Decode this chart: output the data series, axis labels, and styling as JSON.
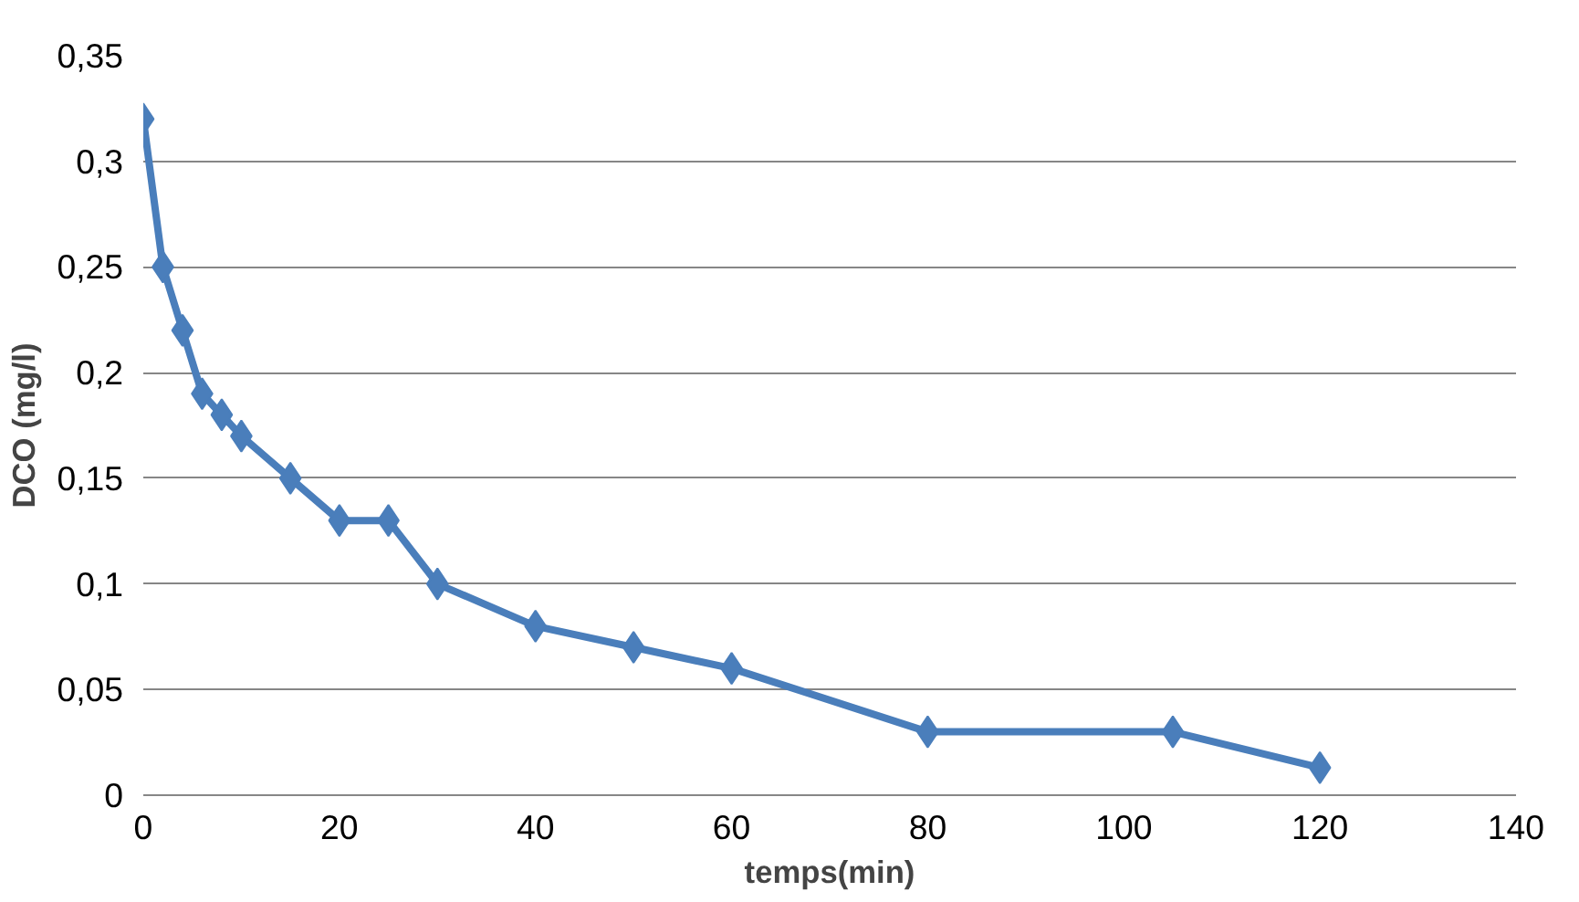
{
  "chart_data": {
    "type": "line",
    "xlabel": "temps(min)",
    "ylabel": "DCO (mg/l)",
    "x": [
      0,
      2,
      4,
      6,
      8,
      10,
      15,
      20,
      25,
      30,
      40,
      50,
      60,
      80,
      105,
      120
    ],
    "series": [
      {
        "color": "#4a7ebb",
        "values": [
          0.32,
          0.25,
          0.22,
          0.19,
          0.18,
          0.17,
          0.15,
          0.13,
          0.13,
          0.1,
          0.08,
          0.07,
          0.06,
          0.03,
          0.03,
          0.013
        ]
      }
    ],
    "xlim": [
      0,
      140
    ],
    "xticks": [
      0,
      20,
      40,
      60,
      80,
      100,
      120,
      140
    ],
    "ylim": [
      0,
      0.35
    ],
    "yticks": [
      0,
      {
        "value": 0.05,
        "label": "0,05"
      },
      {
        "value": 0.1,
        "label": "0,1"
      },
      {
        "value": 0.15,
        "label": "0,15"
      },
      {
        "value": 0.2,
        "label": "0,2"
      },
      {
        "value": 0.25,
        "label": "0,25"
      },
      {
        "value": 0.3,
        "label": "0,3"
      },
      {
        "value": 0.35,
        "label": "0,35"
      }
    ],
    "grid": "y",
    "marker": "diamond",
    "line_style": "solid"
  }
}
